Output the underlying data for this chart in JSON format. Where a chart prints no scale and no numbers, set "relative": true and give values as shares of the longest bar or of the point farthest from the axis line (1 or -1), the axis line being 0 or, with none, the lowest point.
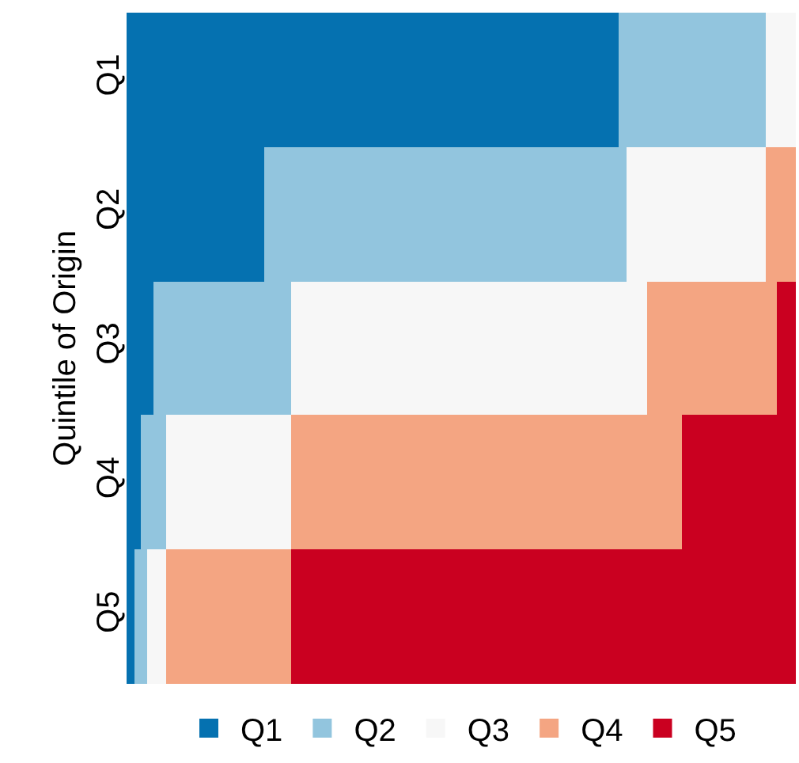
{
  "chart_data": {
    "type": "bar",
    "orientation": "horizontal",
    "stacked": true,
    "relative": true,
    "ylabel": "Quintile of Origin",
    "categories": [
      "Q1",
      "Q2",
      "Q3",
      "Q4",
      "Q5"
    ],
    "legend": "bottom",
    "series": [
      {
        "name": "Q1",
        "color": "#0571b0",
        "values": [
          0.736,
          0.206,
          0.041,
          0.022,
          0.012
        ]
      },
      {
        "name": "Q2",
        "color": "#92c5de",
        "values": [
          0.218,
          0.542,
          0.204,
          0.038,
          0.019
        ]
      },
      {
        "name": "Q3",
        "color": "#f7f7f7",
        "values": [
          0.046,
          0.206,
          0.532,
          0.185,
          0.029
        ]
      },
      {
        "name": "Q4",
        "color": "#f4a582",
        "values": [
          0,
          0.046,
          0.194,
          0.585,
          0.185
        ]
      },
      {
        "name": "Q5",
        "color": "#ca0020",
        "values": [
          0,
          0,
          0.029,
          0.17,
          0.755
        ]
      }
    ]
  }
}
